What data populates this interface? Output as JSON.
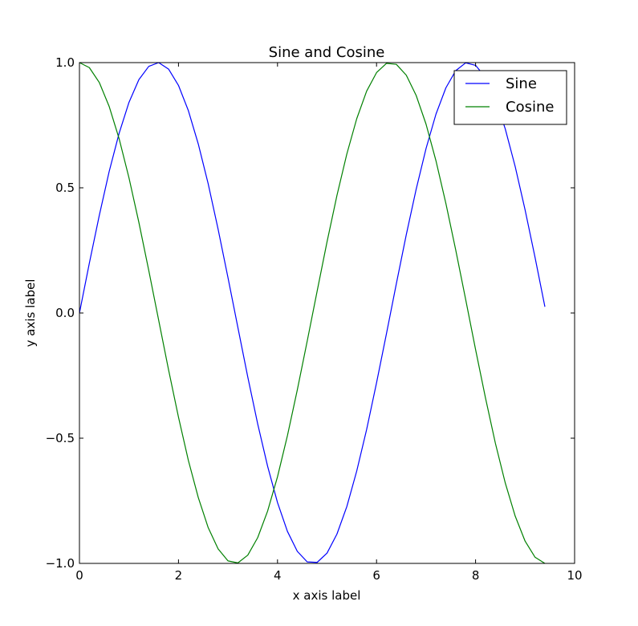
{
  "chart_data": {
    "type": "line",
    "title": "Sine and Cosine",
    "xlabel": "x axis label",
    "ylabel": "y axis label",
    "xlim": [
      0,
      10
    ],
    "ylim": [
      -1.0,
      1.0
    ],
    "x_ticks": [
      0,
      2,
      4,
      6,
      8,
      10
    ],
    "x_tick_labels": [
      "0",
      "2",
      "4",
      "6",
      "8",
      "10"
    ],
    "y_ticks": [
      1.0,
      0.5,
      0.0,
      -0.5,
      -1.0
    ],
    "y_tick_labels": [
      "1.0",
      "0.5",
      "0.0",
      "−0.5",
      "−1.0"
    ],
    "grid": false,
    "legend_position": "top-right",
    "x": [
      0.0,
      0.2,
      0.4,
      0.6,
      0.8,
      1.0,
      1.2,
      1.4,
      1.6,
      1.8,
      2.0,
      2.2,
      2.4,
      2.6,
      2.8,
      3.0,
      3.2,
      3.4,
      3.6,
      3.8,
      4.0,
      4.2,
      4.4,
      4.6,
      4.8,
      5.0,
      5.2,
      5.4,
      5.6,
      5.8,
      6.0,
      6.2,
      6.4,
      6.6,
      6.8,
      7.0,
      7.2,
      7.4,
      7.6,
      7.8,
      8.0,
      8.2,
      8.4,
      8.6,
      8.8,
      9.0,
      9.2,
      9.4
    ],
    "series": [
      {
        "name": "Sine",
        "color": "#0000ff",
        "values": [
          0.0,
          0.199,
          0.389,
          0.565,
          0.717,
          0.841,
          0.932,
          0.985,
          1.0,
          0.974,
          0.909,
          0.808,
          0.675,
          0.516,
          0.335,
          0.141,
          -0.058,
          -0.256,
          -0.443,
          -0.612,
          -0.757,
          -0.872,
          -0.952,
          -0.994,
          -0.996,
          -0.959,
          -0.883,
          -0.773,
          -0.631,
          -0.465,
          -0.279,
          -0.083,
          0.117,
          0.312,
          0.494,
          0.657,
          0.794,
          0.899,
          0.968,
          0.999,
          0.989,
          0.941,
          0.855,
          0.735,
          0.585,
          0.412,
          0.223,
          0.025
        ]
      },
      {
        "name": "Cosine",
        "color": "#008000",
        "values": [
          1.0,
          0.98,
          0.921,
          0.825,
          0.697,
          0.54,
          0.362,
          0.17,
          -0.029,
          -0.227,
          -0.416,
          -0.589,
          -0.737,
          -0.857,
          -0.942,
          -0.99,
          -0.998,
          -0.967,
          -0.897,
          -0.791,
          -0.654,
          -0.49,
          -0.307,
          -0.112,
          0.087,
          0.284,
          0.469,
          0.635,
          0.776,
          0.886,
          0.96,
          0.997,
          0.993,
          0.95,
          0.869,
          0.754,
          0.608,
          0.438,
          0.251,
          0.054,
          -0.146,
          -0.339,
          -0.52,
          -0.679,
          -0.811,
          -0.911,
          -0.975,
          -1.0
        ]
      }
    ]
  }
}
